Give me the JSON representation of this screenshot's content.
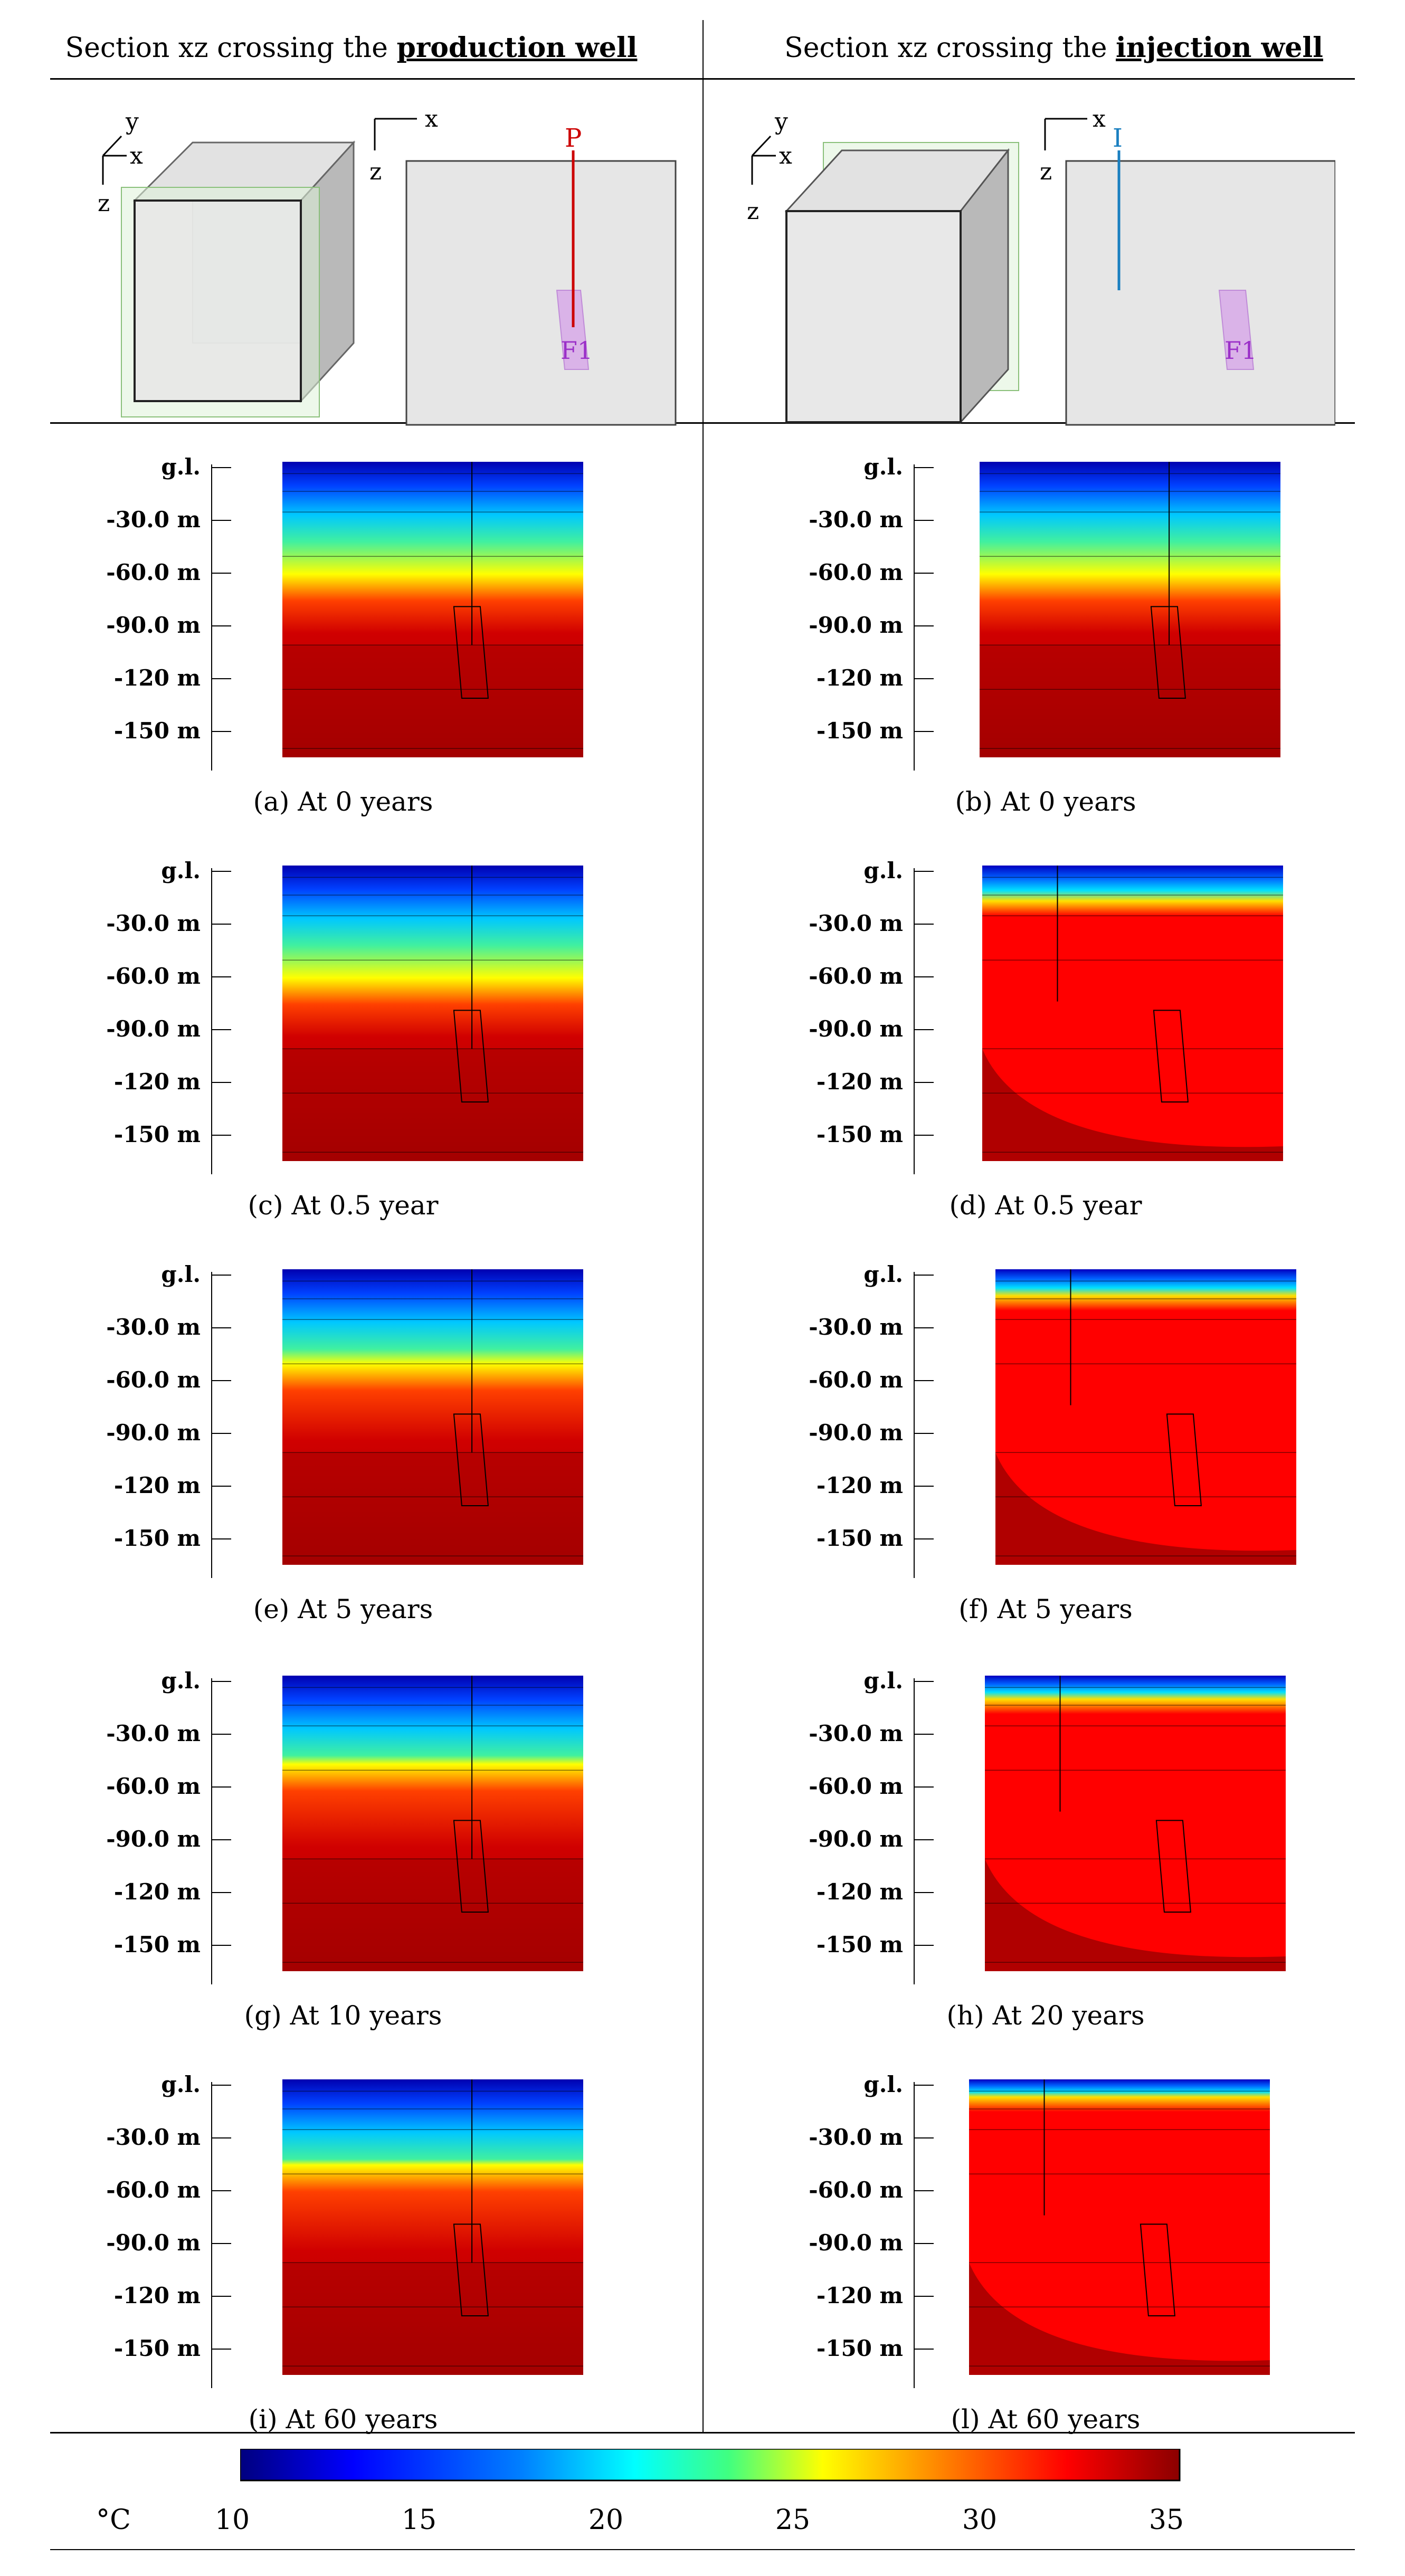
{
  "headers": {
    "left_prefix": "Section xz crossing the ",
    "left_bold": "production well",
    "right_prefix": "Section xz crossing the ",
    "right_bold": "injection well"
  },
  "schematic": {
    "axes": {
      "x": "x",
      "y": "y",
      "z": "z"
    },
    "production_well_label": "P",
    "injection_well_label": "I",
    "fault_label": "F1"
  },
  "depth_labels": [
    "g.l.",
    "-30.0 m",
    "-60.0 m",
    "-90.0 m",
    "-120 m",
    "-150 m"
  ],
  "panels": {
    "a": "(a) At 0 years",
    "b": "(b) At 0 years",
    "c": "(c) At 0.5 year",
    "d": "(d) At 0.5 year",
    "e": "(e) At 5 years",
    "f": "(f) At 5 years",
    "g": "(g) At 10 years",
    "h": "(h) At 20 years",
    "i": "(i) At 60 years",
    "l": "(l) At 60 years"
  },
  "colorbar": {
    "unit": "°C",
    "ticks": [
      "10",
      "15",
      "20",
      "25",
      "30",
      "35"
    ],
    "colors": {
      "cold": "#00007f",
      "cool": "#0060ff",
      "mid": "#00ffff",
      "warm": "#ffff00",
      "hot": "#ff0000",
      "max": "#a00000"
    }
  }
}
